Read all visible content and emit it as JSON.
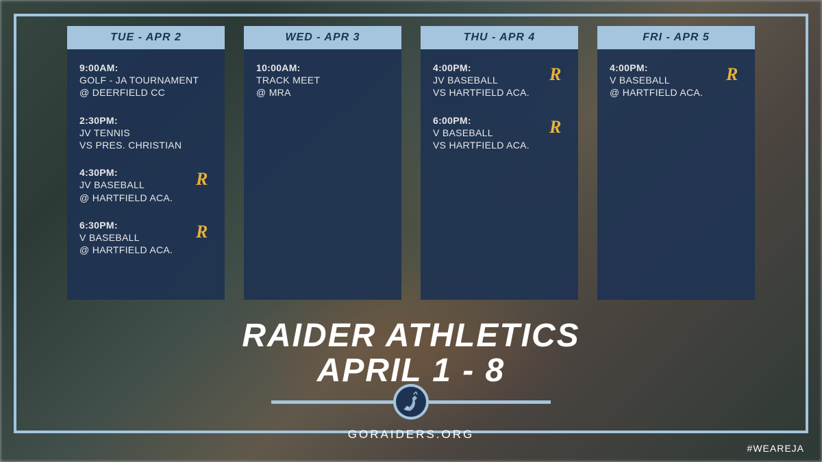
{
  "colors": {
    "navy": "#1e3352",
    "navy_bg": "rgba(30,51,82,0.92)",
    "light_blue": "#a4c5dd",
    "gold": "#e8b23a",
    "white": "#ffffff",
    "text": "#e8e8e8"
  },
  "title": {
    "line1": "RAIDER ATHLETICS",
    "line2": "APRIL 1 - 8"
  },
  "url": "GORAIDERS.ORG",
  "hashtag": "#WEAREJA",
  "days": [
    {
      "header": "TUE - APR 2",
      "events": [
        {
          "time": "9:00AM:",
          "lines": [
            "GOLF - JA TOURNAMENT",
            "@ DEERFIELD CC"
          ],
          "icon": false
        },
        {
          "time": "2:30PM:",
          "lines": [
            "JV TENNIS",
            "VS PRES. CHRISTIAN"
          ],
          "icon": false
        },
        {
          "time": "4:30PM:",
          "lines": [
            "JV BASEBALL",
            "@ HARTFIELD ACA."
          ],
          "icon": true
        },
        {
          "time": "6:30PM:",
          "lines": [
            "V BASEBALL",
            "@ HARTFIELD ACA."
          ],
          "icon": true
        }
      ]
    },
    {
      "header": "WED - APR 3",
      "events": [
        {
          "time": "10:00AM:",
          "lines": [
            "TRACK MEET",
            "@ MRA"
          ],
          "icon": false
        }
      ]
    },
    {
      "header": "THU - APR 4",
      "events": [
        {
          "time": "4:00PM:",
          "lines": [
            "JV BASEBALL",
            "VS HARTFIELD ACA."
          ],
          "icon": true
        },
        {
          "time": "6:00PM:",
          "lines": [
            "V BASEBALL",
            "VS HARTFIELD ACA."
          ],
          "icon": true
        }
      ]
    },
    {
      "header": "FRI - APR 5",
      "events": [
        {
          "time": "4:00PM:",
          "lines": [
            "V BASEBALL",
            "@ HARTFIELD ACA."
          ],
          "icon": true
        }
      ]
    }
  ]
}
